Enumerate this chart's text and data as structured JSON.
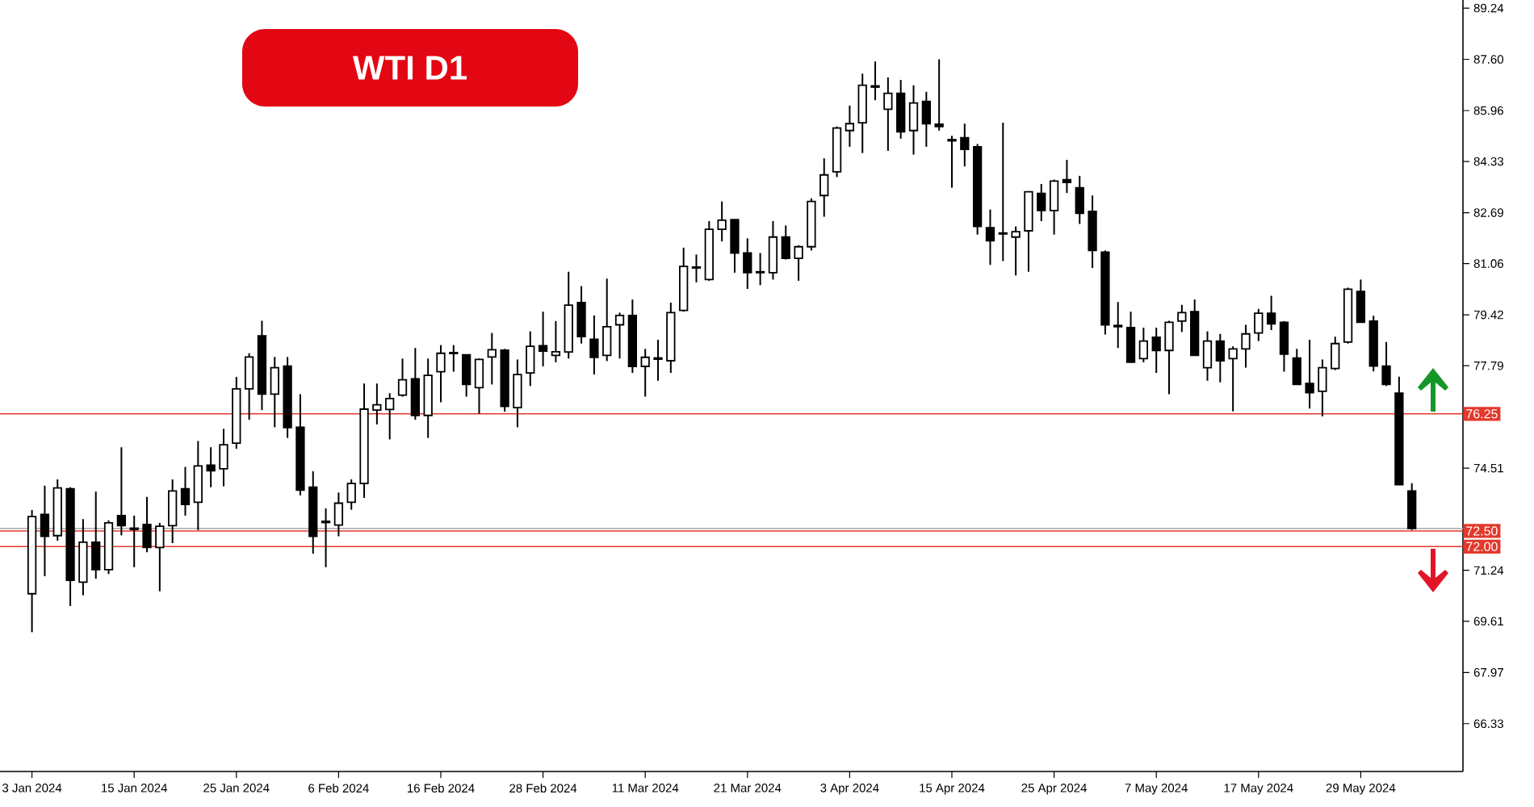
{
  "chart_data": {
    "type": "candlestick",
    "title": "WTI  D1",
    "categories": [
      "3 Jan 2024",
      null,
      null,
      null,
      null,
      null,
      null,
      null,
      "15 Jan 2024",
      null,
      null,
      null,
      null,
      null,
      null,
      null,
      "25 Jan 2024",
      null,
      null,
      null,
      null,
      null,
      null,
      null,
      "6 Feb 2024",
      null,
      null,
      null,
      null,
      null,
      null,
      null,
      "16 Feb 2024",
      null,
      null,
      null,
      null,
      null,
      null,
      null,
      "28 Feb 2024",
      null,
      null,
      null,
      null,
      null,
      null,
      null,
      "11 Mar 2024",
      null,
      null,
      null,
      null,
      null,
      null,
      null,
      "21 Mar 2024",
      null,
      null,
      null,
      null,
      null,
      null,
      null,
      "3 Apr 2024",
      null,
      null,
      null,
      null,
      null,
      null,
      null,
      "15 Apr 2024",
      null,
      null,
      null,
      null,
      null,
      null,
      null,
      "25 Apr 2024",
      null,
      null,
      null,
      null,
      null,
      null,
      null,
      "7 May 2024",
      null,
      null,
      null,
      null,
      null,
      null,
      null,
      "17 May 2024",
      null,
      null,
      null,
      null,
      null,
      null,
      null,
      "29 May 2024",
      null,
      null,
      null,
      null
    ],
    "ohlc": [
      [
        70.49,
        73.17,
        69.26,
        72.96
      ],
      [
        73.03,
        73.95,
        71.05,
        72.33
      ],
      [
        72.35,
        74.15,
        72.19,
        73.88
      ],
      [
        73.85,
        73.9,
        70.1,
        70.92
      ],
      [
        70.86,
        72.88,
        70.44,
        72.14
      ],
      [
        72.14,
        73.76,
        70.97,
        71.26
      ],
      [
        71.26,
        72.84,
        71.12,
        72.76
      ],
      [
        72.99,
        75.18,
        72.36,
        72.67
      ],
      [
        72.59,
        72.99,
        71.34,
        72.55
      ],
      [
        72.71,
        73.59,
        71.82,
        71.97
      ],
      [
        71.97,
        72.76,
        70.57,
        72.65
      ],
      [
        72.67,
        74.15,
        72.11,
        73.78
      ],
      [
        73.85,
        74.55,
        72.99,
        73.35
      ],
      [
        73.42,
        75.38,
        72.53,
        74.58
      ],
      [
        74.61,
        75.18,
        73.9,
        74.43
      ],
      [
        74.49,
        75.77,
        73.93,
        75.26
      ],
      [
        75.31,
        77.43,
        75.13,
        77.05
      ],
      [
        77.05,
        78.19,
        76.06,
        78.07
      ],
      [
        78.75,
        79.23,
        76.37,
        76.88
      ],
      [
        76.88,
        78.07,
        75.82,
        77.73
      ],
      [
        77.78,
        78.07,
        75.48,
        75.81
      ],
      [
        75.82,
        76.88,
        73.64,
        73.81
      ],
      [
        73.9,
        74.41,
        71.77,
        72.33
      ],
      [
        72.81,
        73.22,
        71.34,
        72.77
      ],
      [
        72.69,
        73.73,
        72.33,
        73.39
      ],
      [
        73.42,
        74.15,
        73.18,
        74.02
      ],
      [
        74.02,
        77.22,
        73.56,
        76.4
      ],
      [
        76.37,
        77.22,
        75.91,
        76.54
      ],
      [
        76.39,
        76.91,
        75.43,
        76.74
      ],
      [
        76.85,
        78.02,
        76.8,
        77.34
      ],
      [
        77.37,
        78.36,
        76.06,
        76.2
      ],
      [
        76.2,
        78.02,
        75.48,
        77.48
      ],
      [
        77.6,
        78.45,
        76.62,
        78.19
      ],
      [
        78.21,
        78.45,
        77.6,
        78.18
      ],
      [
        78.14,
        78.14,
        76.8,
        77.19
      ],
      [
        77.09,
        78.02,
        76.25,
        77.99
      ],
      [
        78.07,
        78.84,
        77.19,
        78.3
      ],
      [
        78.29,
        78.33,
        76.32,
        76.49
      ],
      [
        76.45,
        77.99,
        75.82,
        77.51
      ],
      [
        77.56,
        78.89,
        77.14,
        78.41
      ],
      [
        78.43,
        79.52,
        77.77,
        78.26
      ],
      [
        78.12,
        79.22,
        77.9,
        78.24
      ],
      [
        78.23,
        80.8,
        78.02,
        79.73
      ],
      [
        79.81,
        80.34,
        78.5,
        78.72
      ],
      [
        78.64,
        79.4,
        77.51,
        78.06
      ],
      [
        78.12,
        80.58,
        77.94,
        79.04
      ],
      [
        79.1,
        79.49,
        78.02,
        79.4
      ],
      [
        79.4,
        79.91,
        77.56,
        77.77
      ],
      [
        77.77,
        78.33,
        76.8,
        78.06
      ],
      [
        78.04,
        78.62,
        77.31,
        78.0
      ],
      [
        77.95,
        79.81,
        77.56,
        79.49
      ],
      [
        79.56,
        81.57,
        79.52,
        80.97
      ],
      [
        80.92,
        81.35,
        80.46,
        80.95
      ],
      [
        80.55,
        82.42,
        80.51,
        82.16
      ],
      [
        82.16,
        83.05,
        81.77,
        82.45
      ],
      [
        82.47,
        82.47,
        80.77,
        81.4
      ],
      [
        81.4,
        81.87,
        80.25,
        80.77
      ],
      [
        80.8,
        81.4,
        80.37,
        80.77
      ],
      [
        80.77,
        82.42,
        80.55,
        81.91
      ],
      [
        81.91,
        82.28,
        81.19,
        81.23
      ],
      [
        81.23,
        81.65,
        80.51,
        81.6
      ],
      [
        81.6,
        83.15,
        81.48,
        83.05
      ],
      [
        83.24,
        84.43,
        82.56,
        83.9
      ],
      [
        84.0,
        85.45,
        83.83,
        85.4
      ],
      [
        85.32,
        86.12,
        84.8,
        85.54
      ],
      [
        85.57,
        87.14,
        84.6,
        86.77
      ],
      [
        86.75,
        87.53,
        86.29,
        86.71
      ],
      [
        86.0,
        87.02,
        84.67,
        86.51
      ],
      [
        86.51,
        86.94,
        85.06,
        85.28
      ],
      [
        85.32,
        86.77,
        84.55,
        86.2
      ],
      [
        86.25,
        86.56,
        84.8,
        85.54
      ],
      [
        85.52,
        87.6,
        85.32,
        85.45
      ],
      [
        85.03,
        85.15,
        83.49,
        84.99
      ],
      [
        85.09,
        85.54,
        84.17,
        84.72
      ],
      [
        84.8,
        84.89,
        81.99,
        82.25
      ],
      [
        82.21,
        82.79,
        81.02,
        81.79
      ],
      [
        82.04,
        85.57,
        81.14,
        82.01
      ],
      [
        81.91,
        82.25,
        80.68,
        82.08
      ],
      [
        82.11,
        83.36,
        80.8,
        83.36
      ],
      [
        83.31,
        83.61,
        82.42,
        82.76
      ],
      [
        82.76,
        83.75,
        81.99,
        83.7
      ],
      [
        83.75,
        84.38,
        83.32,
        83.66
      ],
      [
        83.49,
        83.87,
        82.33,
        82.67
      ],
      [
        82.73,
        83.24,
        80.92,
        81.48
      ],
      [
        81.43,
        81.48,
        78.79,
        79.1
      ],
      [
        79.08,
        79.83,
        78.36,
        79.04
      ],
      [
        79.01,
        79.52,
        77.9,
        77.9
      ],
      [
        78.02,
        79.01,
        77.9,
        78.58
      ],
      [
        78.7,
        79.01,
        77.56,
        78.28
      ],
      [
        78.28,
        79.23,
        76.88,
        79.18
      ],
      [
        79.22,
        79.74,
        78.87,
        79.49
      ],
      [
        79.52,
        79.91,
        78.12,
        78.12
      ],
      [
        77.73,
        78.89,
        77.31,
        78.58
      ],
      [
        78.58,
        78.81,
        77.26,
        77.95
      ],
      [
        78.02,
        78.41,
        76.33,
        78.33
      ],
      [
        78.33,
        79.1,
        77.73,
        78.81
      ],
      [
        78.84,
        79.61,
        78.58,
        79.47
      ],
      [
        79.47,
        80.03,
        78.93,
        79.13
      ],
      [
        79.18,
        79.22,
        77.6,
        78.16
      ],
      [
        78.04,
        78.33,
        77.19,
        77.19
      ],
      [
        77.22,
        78.62,
        76.42,
        76.93
      ],
      [
        76.97,
        77.99,
        76.17,
        77.73
      ],
      [
        77.7,
        78.72,
        77.65,
        78.5
      ],
      [
        78.55,
        80.29,
        78.5,
        80.24
      ],
      [
        80.17,
        80.55,
        79.18,
        79.18
      ],
      [
        79.22,
        79.39,
        77.61,
        77.78
      ],
      [
        77.78,
        78.55,
        77.14,
        77.19
      ],
      [
        76.91,
        77.44,
        73.98,
        73.98
      ],
      [
        73.78,
        74.03,
        72.53,
        72.58
      ]
    ],
    "ylim": [
      64.8,
      89.5
    ],
    "yticks": [
      66.33,
      67.97,
      69.61,
      71.24,
      74.51,
      77.79,
      79.42,
      81.06,
      82.69,
      84.33,
      85.96,
      {
        "value": 87.6,
        "label": "87.60"
      },
      89.24
    ],
    "ref_lines": [
      {
        "axis": "y",
        "value": 76.25,
        "label": "76.25",
        "color": "#e3392c"
      },
      {
        "axis": "y",
        "value": 72.58,
        "color": "#b4b4b4"
      },
      {
        "axis": "y",
        "value": 72.5,
        "label": "72.50",
        "color": "#e3392c"
      },
      {
        "axis": "y",
        "value": 72.0,
        "label": "72.00",
        "color": "#e3392c"
      }
    ]
  }
}
